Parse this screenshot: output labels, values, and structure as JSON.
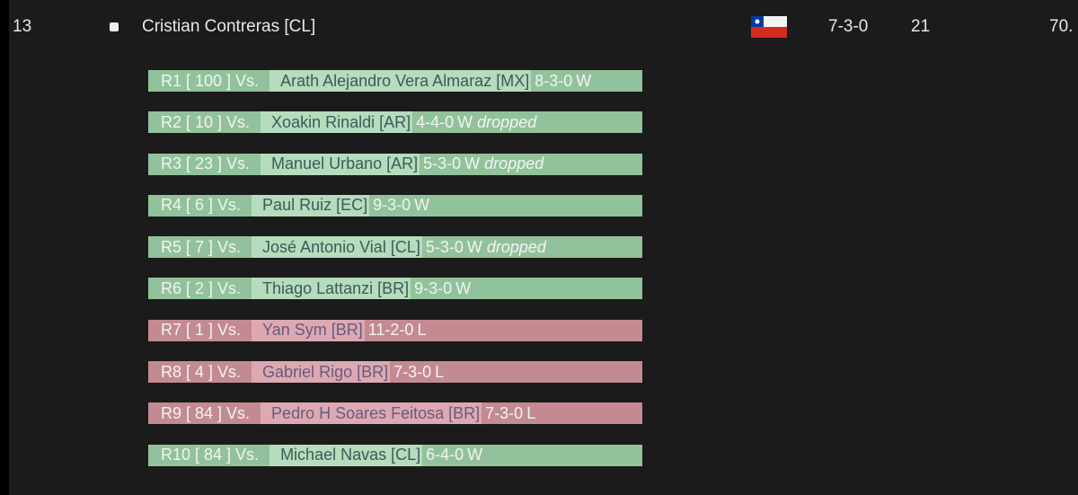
{
  "player": {
    "rank": "13",
    "name": "Cristian Contreras [CL]",
    "record": "7-3-0",
    "points": "21",
    "percent": "70."
  },
  "rounds": [
    {
      "label": "R1 [ 100 ] Vs.",
      "opponent": "Arath Alejandro Vera Almaraz [MX]",
      "record": "8-3-0",
      "result": "W"
    },
    {
      "label": "R2 [ 10 ] Vs.",
      "opponent": "Xoakin Rinaldi [AR]",
      "record": "4-4-0",
      "result": "W",
      "note": "dropped"
    },
    {
      "label": "R3 [ 23 ] Vs.",
      "opponent": "Manuel Urbano [AR]",
      "record": "5-3-0",
      "result": "W",
      "note": "dropped"
    },
    {
      "label": "R4 [ 6 ] Vs.",
      "opponent": "Paul Ruiz [EC]",
      "record": "9-3-0",
      "result": "W"
    },
    {
      "label": "R5 [ 7 ] Vs.",
      "opponent": "José Antonio Vial [CL]",
      "record": "5-3-0",
      "result": "W",
      "note": "dropped"
    },
    {
      "label": "R6 [ 2 ] Vs.",
      "opponent": "Thiago Lattanzi [BR]",
      "record": "9-3-0",
      "result": "W"
    },
    {
      "label": "R7 [ 1 ] Vs.",
      "opponent": "Yan Sym [BR]",
      "record": "11-2-0",
      "result": "L"
    },
    {
      "label": "R8 [ 4 ] Vs.",
      "opponent": "Gabriel Rigo [BR]",
      "record": "7-3-0",
      "result": "L"
    },
    {
      "label": "R9 [ 84 ] Vs.",
      "opponent": "Pedro H Soares Feitosa [BR]",
      "record": "7-3-0",
      "result": "L"
    },
    {
      "label": "R10 [ 84 ] Vs.",
      "opponent": "Michael Navas [CL]",
      "record": "6-4-0",
      "result": "W"
    }
  ]
}
